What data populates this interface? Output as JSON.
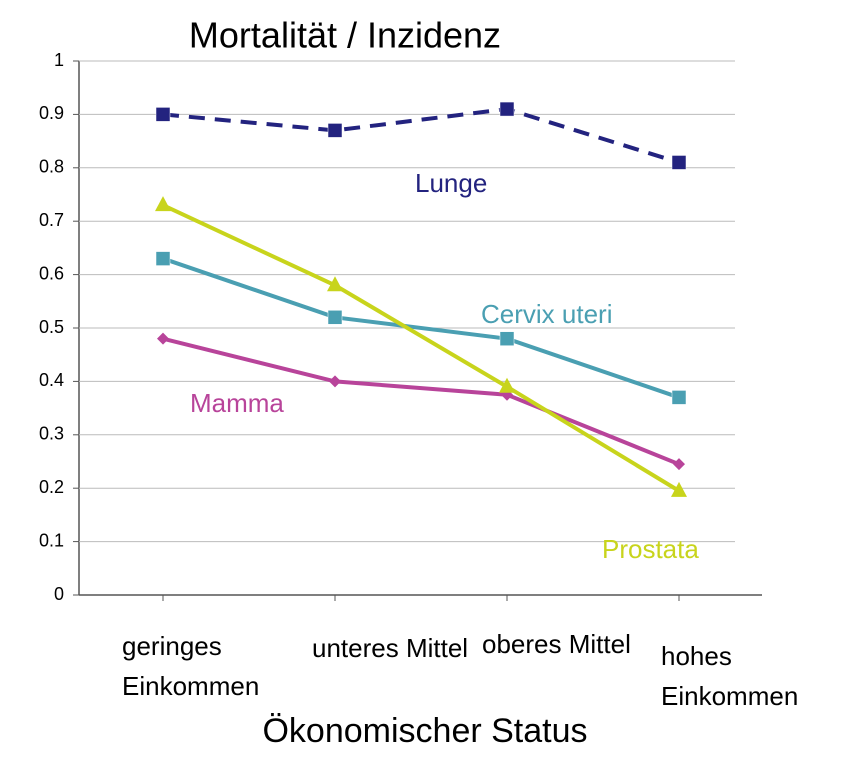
{
  "chart_data": {
    "type": "line",
    "title": "Mortalität / Inzidenz",
    "x_label": "Ökonomischer Status",
    "categories": [
      "geringes Einkommen",
      "unteres Mittel",
      "oberes Mittel",
      "hohes Einkommen"
    ],
    "series": [
      {
        "name": "Lunge",
        "color": "#23237f",
        "marker": "square",
        "dashed": true,
        "values": [
          0.9,
          0.87,
          0.91,
          0.81
        ]
      },
      {
        "name": "Cervix uteri",
        "color": "#4a9fb2",
        "marker": "square",
        "dashed": false,
        "values": [
          0.63,
          0.52,
          0.48,
          0.37
        ]
      },
      {
        "name": "Mamma",
        "color": "#b8449a",
        "marker": "diamond",
        "dashed": false,
        "values": [
          0.48,
          0.4,
          0.375,
          0.245
        ]
      },
      {
        "name": "Prostata",
        "color": "#c8d41c",
        "marker": "triangle",
        "dashed": false,
        "values": [
          0.73,
          0.58,
          0.39,
          0.195
        ]
      }
    ],
    "ylim": [
      0,
      1
    ],
    "yticks": [
      0,
      0.1,
      0.2,
      0.3,
      0.4,
      0.5,
      0.6,
      0.7,
      0.8,
      0.9,
      1
    ],
    "grid": true
  }
}
